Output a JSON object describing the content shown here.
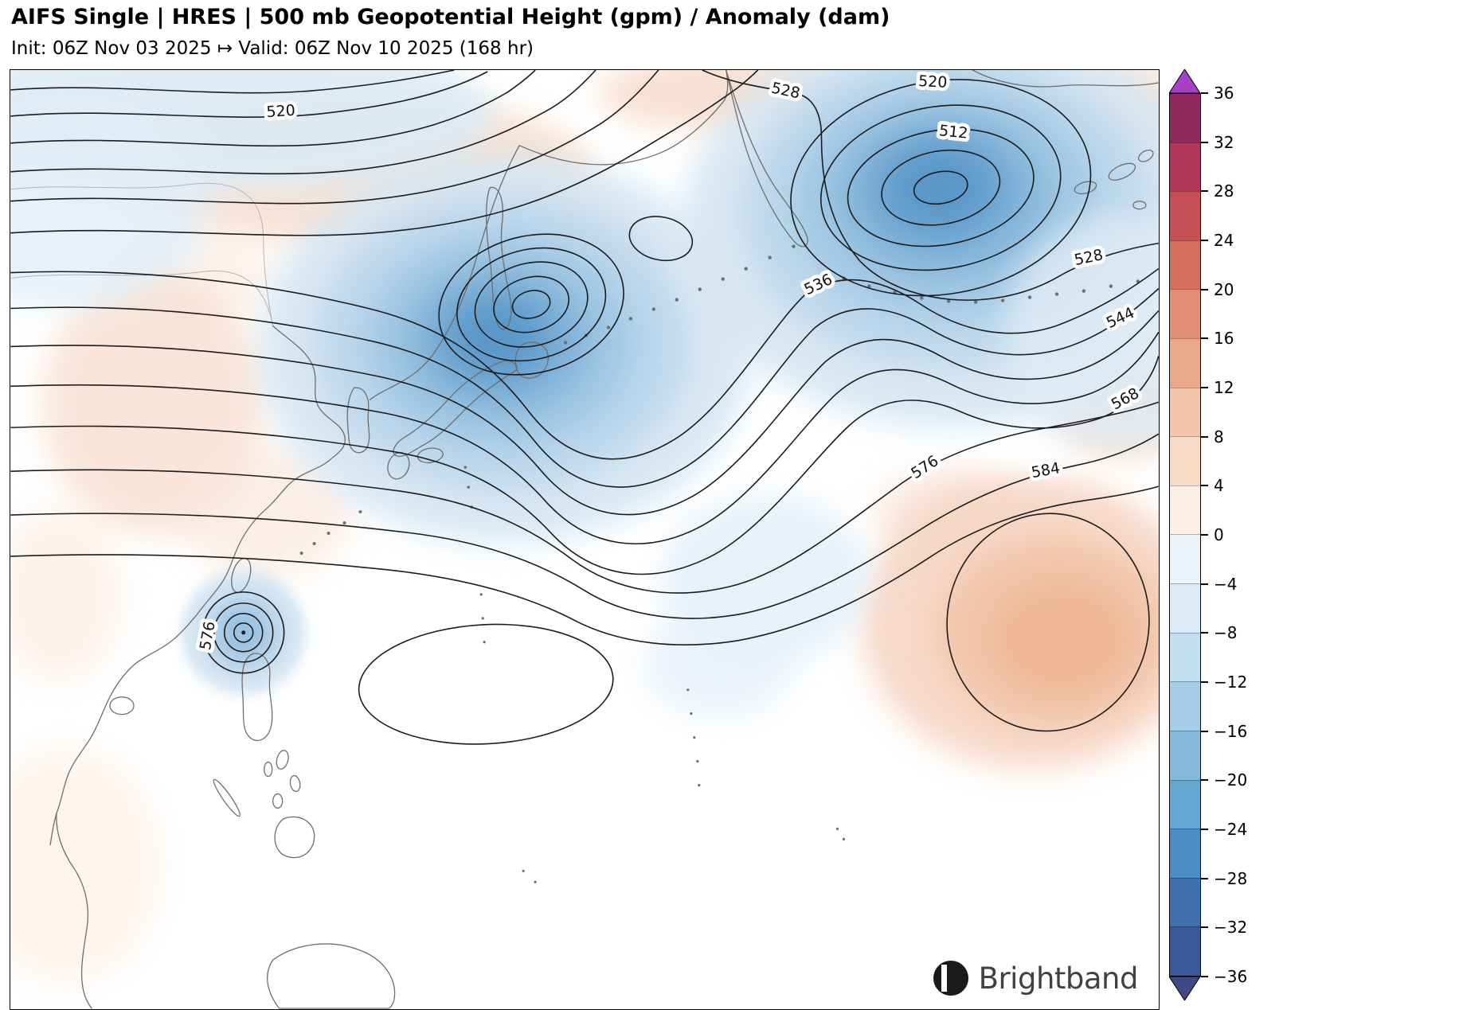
{
  "header": {
    "title": "AIFS Single | HRES | 500 mb Geopotential Height (gpm) / Anomaly (dam)",
    "subtitle": "Init: 06Z Nov 03 2025 ↦ Valid: 06Z Nov 10 2025 (168 hr)"
  },
  "branding": {
    "logo_text": "Brightband"
  },
  "chart_data": {
    "type": "contour-map",
    "model": "AIFS Single | HRES",
    "variable": "500 mb Geopotential Height",
    "variable_unit": "gpm",
    "shading_variable": "Geopotential Height Anomaly",
    "shading_unit": "dam",
    "init_time": "06Z Nov 03 2025",
    "valid_time": "06Z Nov 10 2025",
    "lead_hours": 168,
    "region": "East Asia / Northwest Pacific",
    "contour_unit": "dam",
    "contour_interval": 8,
    "contour_levels_labeled": [
      512,
      520,
      528,
      536,
      544,
      568,
      576,
      584
    ],
    "contour_labels": [
      {
        "value": "520",
        "area": "northwest flow, upper left"
      },
      {
        "value": "528",
        "area": "north of Pacific low, top center-right"
      },
      {
        "value": "520",
        "area": "outer closed ring of North Pacific low"
      },
      {
        "value": "512",
        "area": "inner closed ring of North Pacific low"
      },
      {
        "value": "536",
        "area": "confluent jet between the two lows"
      },
      {
        "value": "528",
        "area": "east of Pacific low, right edge"
      },
      {
        "value": "544",
        "area": "packed gradient, right edge"
      },
      {
        "value": "568",
        "area": "packed gradient, right edge"
      },
      {
        "value": "576",
        "area": "mid-latitude flow, right-center"
      },
      {
        "value": "584",
        "area": "subtropical ridge, lower right"
      },
      {
        "value": "576",
        "area": "tropical cyclone east of Luzon"
      }
    ],
    "features": [
      {
        "type": "closed low",
        "region": "Sea of Okhotsk / northern Japan",
        "anomaly": "strong negative (blue)"
      },
      {
        "type": "closed low",
        "region": "North Pacific / Bering Sea",
        "innermost_labeled_contour": "512",
        "anomaly": "strong negative (blue)"
      },
      {
        "type": "tropical cyclone",
        "region": "east of Luzon, Philippines",
        "labeled_contour": "576",
        "anomaly": "negative (blue)"
      },
      {
        "type": "ridge",
        "region": "subtropical western Pacific, lower right",
        "labeled_contour": "584",
        "anomaly": "positive (orange)"
      }
    ],
    "colorbar": {
      "unit": "dam",
      "range": [
        -36,
        36
      ],
      "tick_step": 4,
      "ticks": [
        "36",
        "32",
        "28",
        "24",
        "20",
        "16",
        "12",
        "8",
        "4",
        "0",
        "−4",
        "−8",
        "−12",
        "−16",
        "−20",
        "−24",
        "−28",
        "−32",
        "−36"
      ],
      "segment_colors": [
        "#8f2a5e",
        "#b03558",
        "#c54f55",
        "#d46f60",
        "#e08d74",
        "#eaa98c",
        "#f2c4a9",
        "#f8dac6",
        "#fcefe6",
        "#edf4f9",
        "#dcebf5",
        "#c3def0",
        "#a5cde7",
        "#85badd",
        "#64a5d2",
        "#4a8cc4",
        "#3e70b0",
        "#3b5898"
      ],
      "arrow_top_color": "#a83fc8",
      "arrow_bottom_color": "#3f4a85"
    }
  }
}
